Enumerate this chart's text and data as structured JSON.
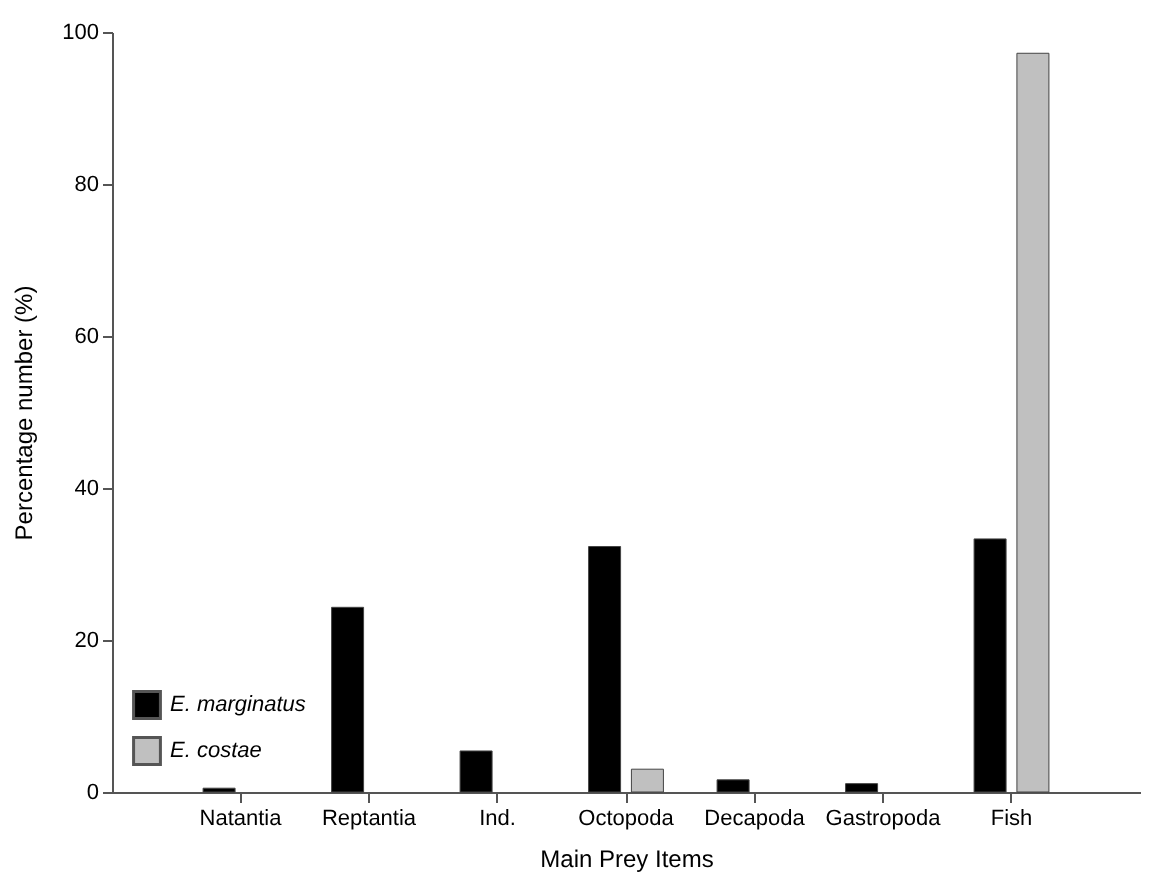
{
  "chart_data": {
    "type": "bar",
    "xlabel": "Main Prey Items",
    "ylabel": "Percentage number (%)",
    "categories": [
      "Natantia",
      "Reptantia",
      "Ind.",
      "Octopoda",
      "Decapoda",
      "Gastropoda",
      "Fish"
    ],
    "series": [
      {
        "name": "E. marginatus",
        "color": "#000000",
        "values": [
          0.5,
          24.3,
          5.4,
          32.3,
          1.6,
          1.1,
          33.3
        ]
      },
      {
        "name": "E. costae",
        "color": "#c0c0c0",
        "values": [
          null,
          null,
          null,
          3.0,
          null,
          null,
          97.2
        ]
      }
    ],
    "ylim": [
      0,
      100
    ],
    "yticks": [
      0,
      20,
      40,
      60,
      80,
      100
    ],
    "grid": false,
    "legend": "bottom left"
  }
}
